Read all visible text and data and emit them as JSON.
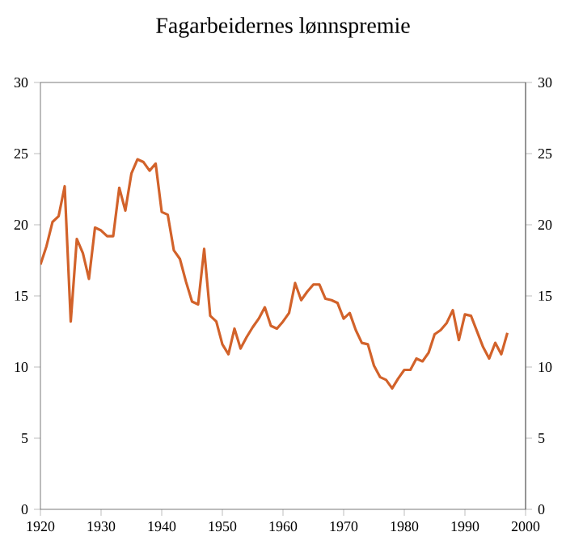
{
  "chart_data": {
    "type": "line",
    "title": "Fagarbeidernes lønnspremie",
    "x": [
      1920,
      1921,
      1922,
      1923,
      1924,
      1925,
      1926,
      1927,
      1928,
      1929,
      1930,
      1931,
      1932,
      1933,
      1934,
      1935,
      1936,
      1937,
      1938,
      1939,
      1940,
      1941,
      1942,
      1943,
      1944,
      1945,
      1946,
      1947,
      1948,
      1949,
      1950,
      1951,
      1952,
      1953,
      1954,
      1955,
      1956,
      1957,
      1958,
      1959,
      1960,
      1961,
      1962,
      1963,
      1964,
      1965,
      1966,
      1967,
      1968,
      1969,
      1970,
      1971,
      1972,
      1973,
      1974,
      1975,
      1976,
      1977,
      1978,
      1979,
      1980,
      1981,
      1982,
      1983,
      1984,
      1985,
      1986,
      1987,
      1988,
      1989,
      1990,
      1991,
      1992,
      1993,
      1994,
      1995,
      1996,
      1997
    ],
    "series": [
      {
        "color": "#d2622a",
        "values": [
          17.2,
          18.5,
          20.2,
          20.6,
          22.7,
          13.2,
          19.0,
          18.0,
          16.2,
          19.8,
          19.6,
          19.2,
          19.2,
          22.6,
          21.0,
          23.6,
          24.6,
          24.4,
          23.8,
          24.3,
          20.9,
          20.7,
          18.2,
          17.6,
          16.0,
          14.6,
          14.4,
          18.3,
          13.6,
          13.2,
          11.6,
          10.9,
          12.7,
          11.3,
          12.1,
          12.8,
          13.4,
          14.2,
          12.9,
          12.7,
          13.2,
          13.8,
          15.9,
          14.7,
          15.3,
          15.8,
          15.8,
          14.8,
          14.7,
          14.5,
          13.4,
          13.8,
          12.6,
          11.7,
          11.6,
          10.1,
          9.3,
          9.1,
          8.5,
          9.2,
          9.8,
          9.8,
          10.6,
          10.4,
          11.0,
          12.3,
          12.6,
          13.1,
          14.0,
          11.9,
          13.7,
          13.6,
          12.5,
          11.4,
          10.6,
          11.7,
          10.9,
          12.4
        ]
      }
    ],
    "xlim": [
      1920,
      2000
    ],
    "xticks": [
      1920,
      1930,
      1940,
      1950,
      1960,
      1970,
      1980,
      1990,
      2000
    ],
    "ylim": [
      0,
      30
    ],
    "yticks": [
      0,
      5,
      10,
      15,
      20,
      25,
      30
    ],
    "y2lim": [
      0,
      30
    ],
    "y2ticks": [
      0,
      5,
      10,
      15,
      20,
      25,
      30
    ],
    "grid": false,
    "marker": "none",
    "line_style": "solid"
  }
}
